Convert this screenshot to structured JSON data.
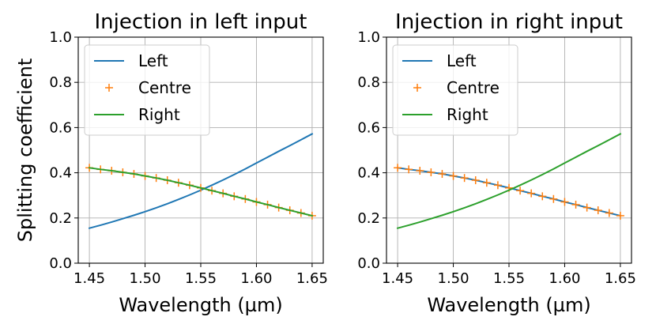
{
  "chart_data": [
    {
      "type": "line",
      "title": "Injection in left input",
      "xlabel": "Wavelength (µm)",
      "ylabel": "Splitting coefficient",
      "xlim": [
        1.44,
        1.66
      ],
      "ylim": [
        0.0,
        1.0
      ],
      "xticks": [
        1.45,
        1.5,
        1.55,
        1.6,
        1.65
      ],
      "xtick_labels": [
        "1.45",
        "1.50",
        "1.55",
        "1.60",
        "1.65"
      ],
      "yticks": [
        0.0,
        0.2,
        0.4,
        0.6,
        0.8,
        1.0
      ],
      "ytick_labels": [
        "0.0",
        "0.2",
        "0.4",
        "0.6",
        "0.8",
        "1.0"
      ],
      "grid": true,
      "legend_position": "top-left",
      "x": [
        1.45,
        1.46,
        1.47,
        1.48,
        1.49,
        1.5,
        1.51,
        1.52,
        1.53,
        1.54,
        1.55,
        1.56,
        1.57,
        1.58,
        1.59,
        1.6,
        1.61,
        1.62,
        1.63,
        1.64,
        1.65
      ],
      "series": [
        {
          "name": "Left",
          "style": "line",
          "color": "#1f77b4",
          "values": [
            0.155,
            0.168,
            0.182,
            0.197,
            0.212,
            0.228,
            0.245,
            0.263,
            0.282,
            0.302,
            0.323,
            0.345,
            0.368,
            0.392,
            0.417,
            0.443,
            0.469,
            0.495,
            0.52,
            0.546,
            0.572
          ]
        },
        {
          "name": "Centre",
          "style": "marker-plus",
          "color": "#ff7f0e",
          "values": [
            0.422,
            0.415,
            0.409,
            0.402,
            0.395,
            0.386,
            0.377,
            0.367,
            0.356,
            0.345,
            0.333,
            0.321,
            0.309,
            0.296,
            0.284,
            0.271,
            0.259,
            0.246,
            0.234,
            0.222,
            0.21
          ]
        },
        {
          "name": "Right",
          "style": "line",
          "color": "#2ca02c",
          "values": [
            0.422,
            0.415,
            0.409,
            0.402,
            0.395,
            0.386,
            0.377,
            0.367,
            0.356,
            0.345,
            0.333,
            0.321,
            0.309,
            0.296,
            0.284,
            0.271,
            0.259,
            0.246,
            0.234,
            0.222,
            0.21
          ]
        }
      ]
    },
    {
      "type": "line",
      "title": "Injection in right input",
      "xlabel": "Wavelength (µm)",
      "ylabel": "",
      "xlim": [
        1.44,
        1.66
      ],
      "ylim": [
        0.0,
        1.0
      ],
      "xticks": [
        1.45,
        1.5,
        1.55,
        1.6,
        1.65
      ],
      "xtick_labels": [
        "1.45",
        "1.50",
        "1.55",
        "1.60",
        "1.65"
      ],
      "yticks": [
        0.0,
        0.2,
        0.4,
        0.6,
        0.8,
        1.0
      ],
      "ytick_labels": [
        "0.0",
        "0.2",
        "0.4",
        "0.6",
        "0.8",
        "1.0"
      ],
      "grid": true,
      "legend_position": "top-left",
      "x": [
        1.45,
        1.46,
        1.47,
        1.48,
        1.49,
        1.5,
        1.51,
        1.52,
        1.53,
        1.54,
        1.55,
        1.56,
        1.57,
        1.58,
        1.59,
        1.6,
        1.61,
        1.62,
        1.63,
        1.64,
        1.65
      ],
      "series": [
        {
          "name": "Left",
          "style": "line",
          "color": "#1f77b4",
          "values": [
            0.422,
            0.415,
            0.409,
            0.402,
            0.395,
            0.386,
            0.377,
            0.367,
            0.356,
            0.345,
            0.333,
            0.321,
            0.309,
            0.296,
            0.284,
            0.271,
            0.259,
            0.246,
            0.234,
            0.222,
            0.21
          ]
        },
        {
          "name": "Centre",
          "style": "marker-plus",
          "color": "#ff7f0e",
          "values": [
            0.422,
            0.415,
            0.409,
            0.402,
            0.395,
            0.386,
            0.377,
            0.367,
            0.356,
            0.345,
            0.333,
            0.321,
            0.309,
            0.296,
            0.284,
            0.271,
            0.259,
            0.246,
            0.234,
            0.222,
            0.21
          ]
        },
        {
          "name": "Right",
          "style": "line",
          "color": "#2ca02c",
          "values": [
            0.155,
            0.168,
            0.182,
            0.197,
            0.212,
            0.228,
            0.245,
            0.263,
            0.282,
            0.302,
            0.323,
            0.345,
            0.368,
            0.392,
            0.417,
            0.443,
            0.469,
            0.495,
            0.52,
            0.546,
            0.572
          ]
        }
      ]
    }
  ]
}
